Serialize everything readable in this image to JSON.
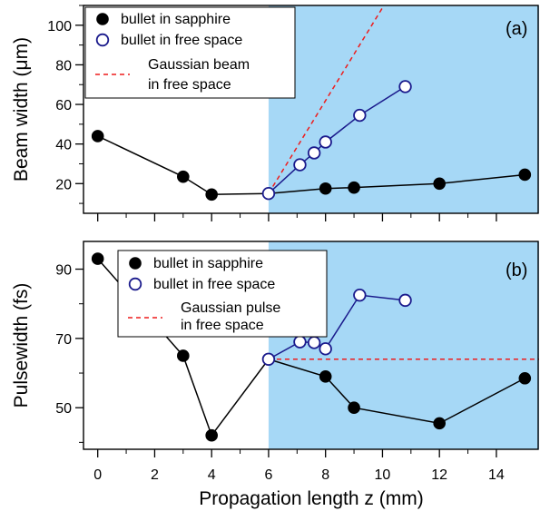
{
  "chart_data": [
    {
      "type": "line",
      "panel": "(a)",
      "xlabel": "",
      "ylabel": "Beam width (μm)",
      "xlim": [
        -0.5,
        15.5
      ],
      "ylim": [
        5,
        110
      ],
      "xticks": [
        0,
        2,
        4,
        6,
        8,
        10,
        12,
        14
      ],
      "yticks": [
        20,
        40,
        60,
        80,
        100
      ],
      "shaded_region": {
        "x_from": 6.0,
        "color": "#a6d8f6"
      },
      "series": [
        {
          "name": "bullet in sapphire",
          "marker": "filled-circle",
          "color": "#000000",
          "x": [
            0,
            3,
            4,
            6,
            8,
            9,
            12,
            15
          ],
          "y": [
            44,
            23.5,
            14.5,
            15,
            17.5,
            18,
            20,
            24.5
          ]
        },
        {
          "name": "bullet in free space",
          "marker": "open-circle",
          "color": "#1a1a8c",
          "x": [
            6,
            7.1,
            7.6,
            8,
            9.2,
            10.8
          ],
          "y": [
            15,
            29.5,
            35.5,
            41,
            54.5,
            69
          ]
        },
        {
          "name": "Gaussian beam\nin free space",
          "marker": "none",
          "linestyle": "dashed",
          "color": "#ee1c1c",
          "x": [
            6,
            10.05
          ],
          "y": [
            15,
            110
          ]
        }
      ],
      "legend": {
        "placement": "top-left",
        "entries": [
          "bullet in sapphire",
          "bullet in free space",
          "Gaussian beam",
          "in free space"
        ]
      }
    },
    {
      "type": "line",
      "panel": "(b)",
      "xlabel": "Propagation length z (mm)",
      "ylabel": "Pulsewidth (fs)",
      "xlim": [
        -0.5,
        15.5
      ],
      "ylim": [
        38,
        98
      ],
      "xticks": [
        0,
        2,
        4,
        6,
        8,
        10,
        12,
        14
      ],
      "yticks": [
        50,
        70,
        90
      ],
      "shaded_region": {
        "x_from": 6.0,
        "color": "#a6d8f6"
      },
      "series": [
        {
          "name": "bullet in sapphire",
          "marker": "filled-circle",
          "color": "#000000",
          "x": [
            0,
            3,
            4,
            6,
            8,
            9,
            12,
            15
          ],
          "y": [
            93,
            65,
            42,
            64,
            59,
            50,
            45.5,
            58.5
          ]
        },
        {
          "name": "bullet in free space",
          "marker": "open-circle",
          "color": "#1a1a8c",
          "x": [
            6,
            7.1,
            7.6,
            8,
            9.2,
            10.8
          ],
          "y": [
            64,
            69,
            68.8,
            67,
            82.5,
            81
          ]
        },
        {
          "name": "Gaussian pulse\nin free space",
          "marker": "none",
          "linestyle": "dashed",
          "color": "#ee1c1c",
          "x": [
            6,
            15.5
          ],
          "y": [
            64,
            64
          ]
        }
      ],
      "legend": {
        "placement": "top-left",
        "entries": [
          "bullet in sapphire",
          "bullet in free space",
          "Gaussian pulse",
          "in free space"
        ]
      }
    }
  ]
}
